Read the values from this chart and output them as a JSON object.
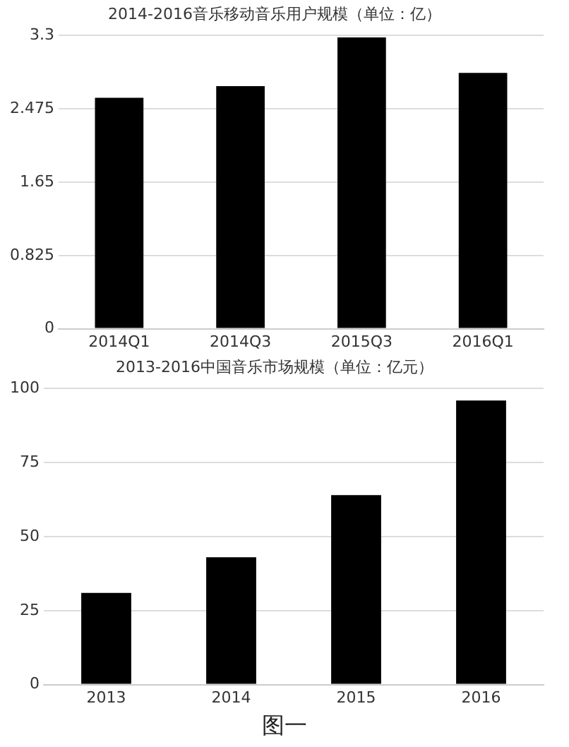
{
  "chart_data": [
    {
      "type": "bar",
      "title": "2014-2016音乐移动音乐用户规模（单位：亿）",
      "categories": [
        "2014Q1",
        "2014Q3",
        "2015Q3",
        "2016Q1"
      ],
      "values": [
        2.6,
        2.73,
        3.28,
        2.88
      ],
      "color": "#000000",
      "ylim": [
        0,
        3.3
      ],
      "yticks": [
        0,
        0.825,
        1.65,
        2.475,
        3.3
      ],
      "grid": "y",
      "legend": false
    },
    {
      "type": "bar",
      "title": "2013-2016中国音乐市场规模（单位：亿元）",
      "categories": [
        "2013",
        "2014",
        "2015",
        "2016"
      ],
      "values": [
        31,
        43,
        64,
        96
      ],
      "color": "#000000",
      "ylim": [
        0,
        100
      ],
      "yticks": [
        0,
        25,
        50,
        75,
        100
      ],
      "grid": "y",
      "legend": false,
      "annotations": [
        "图一"
      ]
    }
  ]
}
